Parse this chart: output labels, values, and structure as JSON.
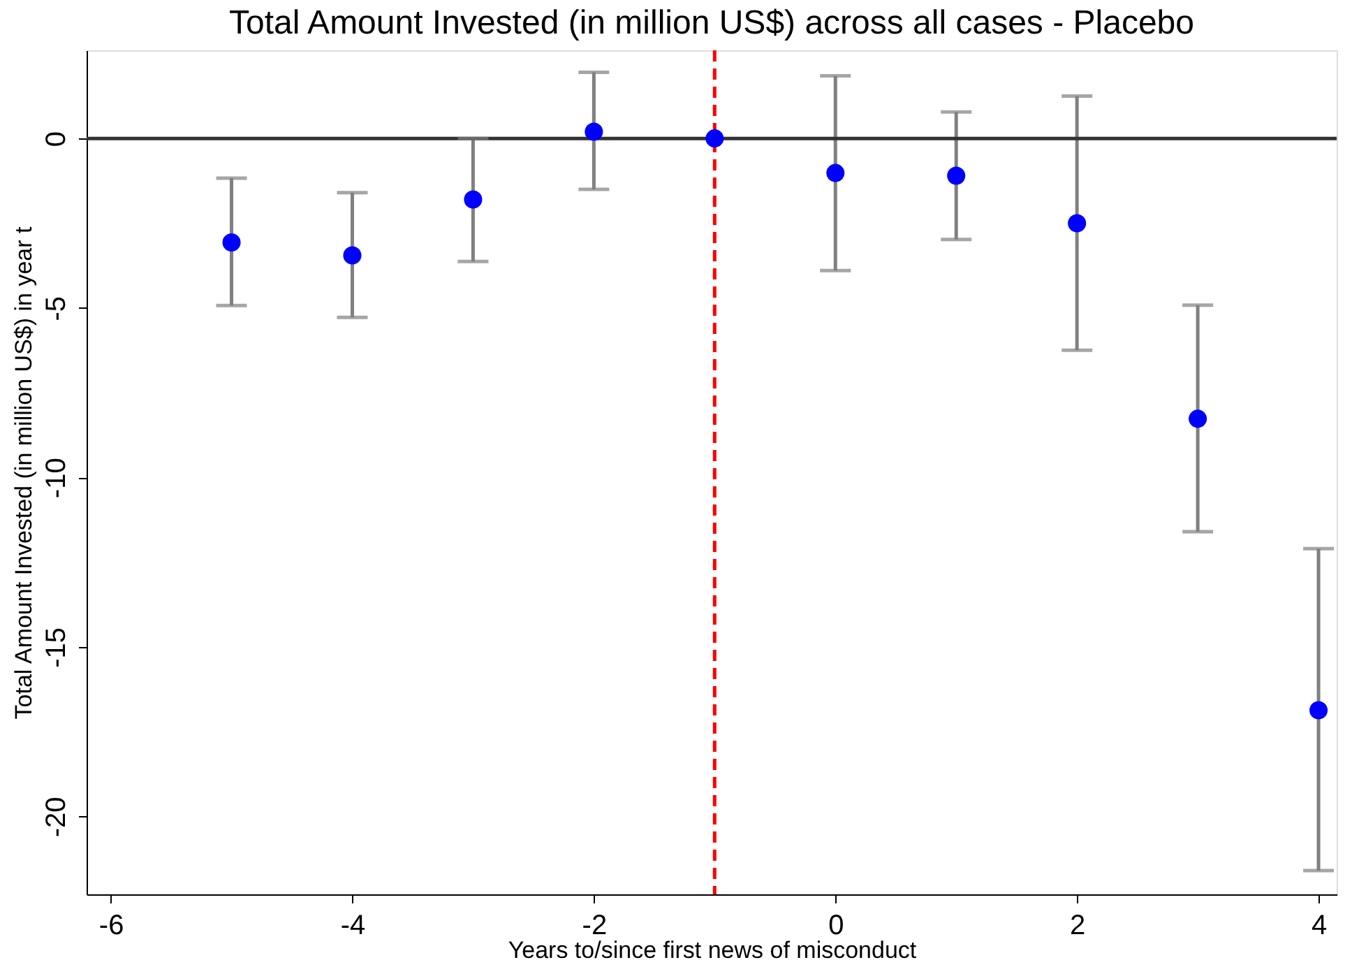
{
  "chart_data": {
    "type": "scatter",
    "title": "Total Amount Invested (in million US$) across all cases - Placebo",
    "xlabel": "Years to/since first news of misconduct",
    "ylabel": "Total Amount Invested (in million US$) in year t",
    "x": [
      -5,
      -4,
      -3,
      -2,
      -1,
      0,
      1,
      2,
      3,
      4
    ],
    "series": [
      {
        "color": "#0000ff",
        "values": [
          -3.07,
          -3.45,
          -1.8,
          0.2,
          0,
          -1.02,
          -1.1,
          -2.5,
          -8.27,
          -16.87
        ],
        "errors": [
          [
            -4.93,
            -1.17
          ],
          [
            -5.28,
            -1.6
          ],
          [
            -3.63,
            0.0
          ],
          [
            -1.5,
            1.95
          ],
          null,
          [
            -3.9,
            1.85
          ],
          [
            -2.98,
            0.78
          ],
          [
            -6.25,
            1.25
          ],
          [
            -11.6,
            -4.92
          ],
          [
            -21.6,
            -12.1
          ]
        ]
      }
    ],
    "xlim": [
      -6.2,
      4.15
    ],
    "ylim": [
      -22.3,
      2.6
    ],
    "xticks": [
      -6,
      -4,
      -2,
      0,
      2,
      4
    ],
    "yticks": [
      -20,
      -15,
      -10,
      -5,
      0
    ],
    "ref_lines": [
      {
        "axis": "y",
        "value": 0,
        "color": "#333333",
        "line_style": "solid"
      },
      {
        "axis": "x",
        "value": -1,
        "color": "#ff0000",
        "line_style": "dashed"
      }
    ],
    "marker": "circle",
    "grid": false
  }
}
